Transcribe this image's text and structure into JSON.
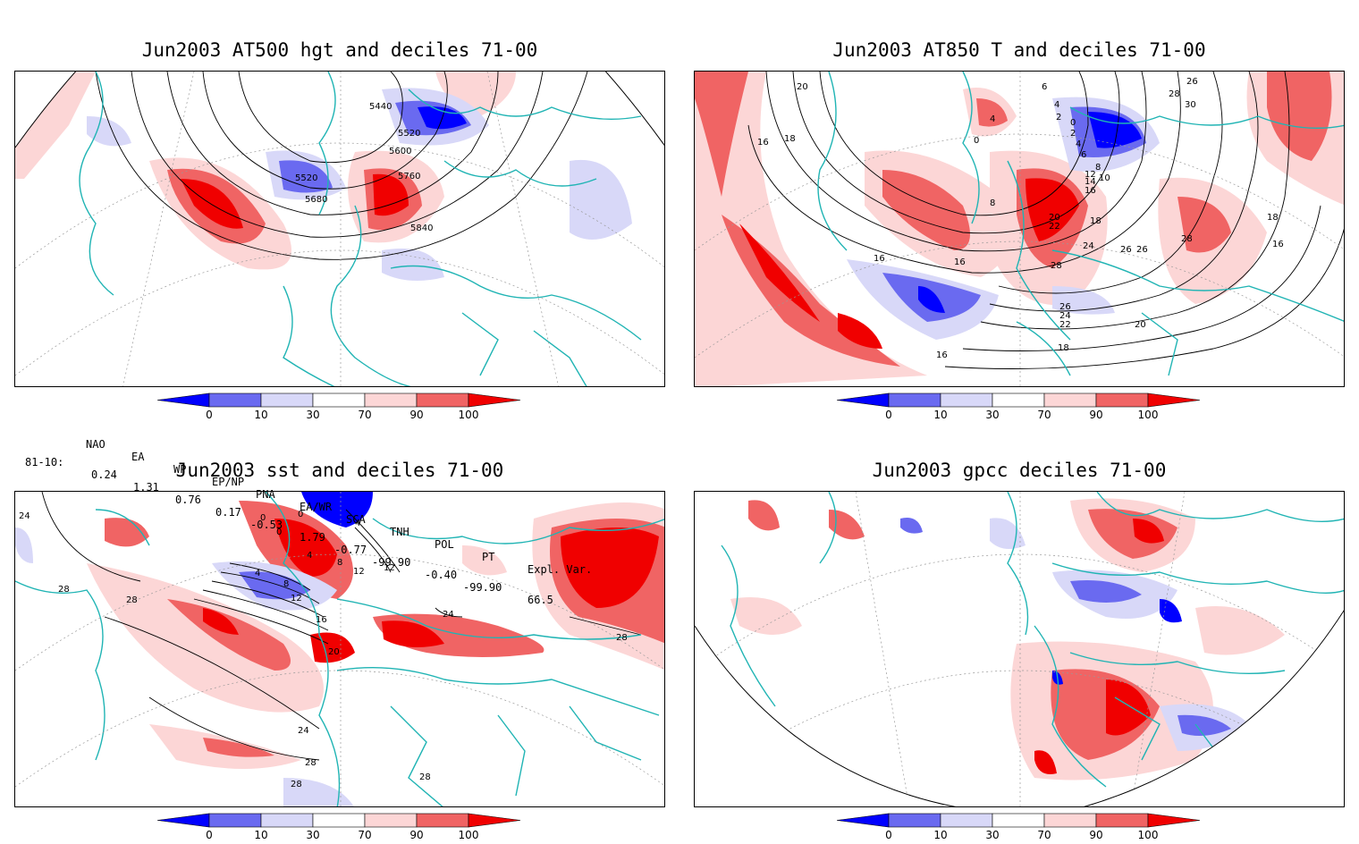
{
  "panels": [
    {
      "title": "Jun2003 AT500 hgt and deciles 71-00",
      "contour_labels": [
        "5440",
        "5520",
        "5520",
        "5600",
        "5680",
        "5760",
        "5840"
      ]
    },
    {
      "title": "Jun2003 AT850 T and deciles 71-00",
      "contour_labels": [
        "20",
        "4",
        "6",
        "4",
        "2",
        "0",
        "2",
        "4",
        "6",
        "8",
        "10",
        "12",
        "14",
        "16",
        "18",
        "20",
        "22",
        "24",
        "26",
        "28",
        "26",
        "24",
        "22",
        "20",
        "18",
        "16",
        "16",
        "16",
        "16",
        "18",
        "26",
        "28",
        "30",
        "18",
        "16",
        "8",
        "0",
        "28",
        "26"
      ]
    },
    {
      "title": "Jun2003 sst and deciles 71-00",
      "contour_labels": [
        "24",
        "28",
        "28",
        "0",
        "0",
        "0",
        "4",
        "8",
        "4",
        "12",
        "4",
        "8",
        "12",
        "16",
        "20",
        "12",
        "24",
        "28",
        "24",
        "28",
        "28",
        "28"
      ]
    },
    {
      "title": "Jun2003 gpcc deciles 71-00",
      "contour_labels": []
    }
  ],
  "colorbar": {
    "ticks": [
      "0",
      "10",
      "30",
      "70",
      "90",
      "100"
    ],
    "colors": [
      "#0000ff",
      "#6a6af0",
      "#d8d8f8",
      "#ffffff",
      "#fcd6d6",
      "#f06464",
      "#f00000"
    ]
  },
  "indices": {
    "names": [
      "NAO",
      "EA",
      "WP",
      "EP/NP",
      "PNA",
      "EA/WR",
      "SCA",
      "TNH",
      "POL",
      "PT",
      "Expl. Var."
    ],
    "row_label": "81-10:",
    "values": [
      "0.24",
      "1.31",
      "0.76",
      "0.17",
      "-0.53",
      "1.79",
      "-0.77",
      "-99.90",
      "-0.40",
      "-99.90",
      "66.5"
    ]
  },
  "colors": {
    "coast": "#20b4b4",
    "strong_pos": "#f00000",
    "mid_pos": "#f06464",
    "weak_pos": "#fcd6d6",
    "weak_neg": "#d8d8f8",
    "mid_neg": "#6a6af0",
    "strong_neg": "#0000ff"
  }
}
